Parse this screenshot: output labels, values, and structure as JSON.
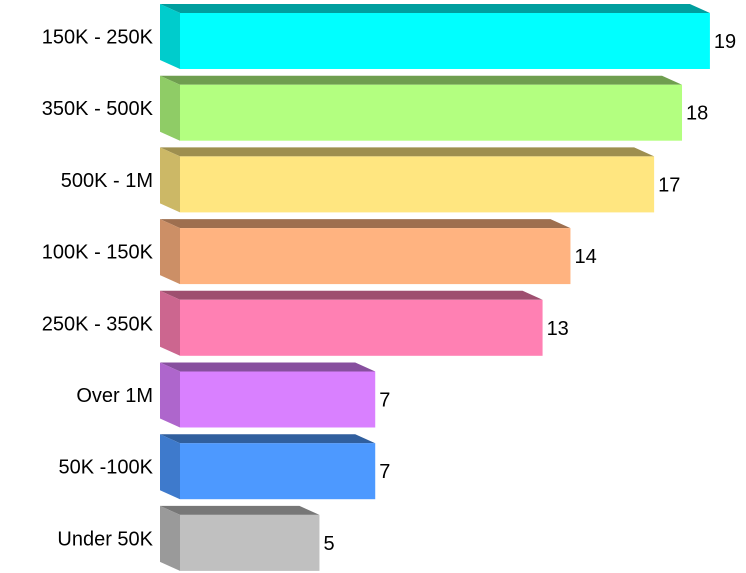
{
  "chart_data": {
    "type": "bar",
    "orientation": "horizontal",
    "style": "3d",
    "title": "",
    "xlabel": "",
    "ylabel": "",
    "xlim": [
      0,
      19
    ],
    "grid": false,
    "legend": "none",
    "categories": [
      "150K - 250K",
      "350K - 500K",
      "500K - 1M",
      "100K - 150K",
      "250K - 350K",
      "Over 1M",
      "50K -100K",
      "Under 50K"
    ],
    "values": [
      19,
      18,
      17,
      14,
      13,
      7,
      7,
      5
    ],
    "colors": [
      "#00FFFF",
      "#B3FF80",
      "#FFE680",
      "#FFB380",
      "#FF80B3",
      "#D980FF",
      "#4D99FF",
      "#C0C0C0"
    ]
  }
}
